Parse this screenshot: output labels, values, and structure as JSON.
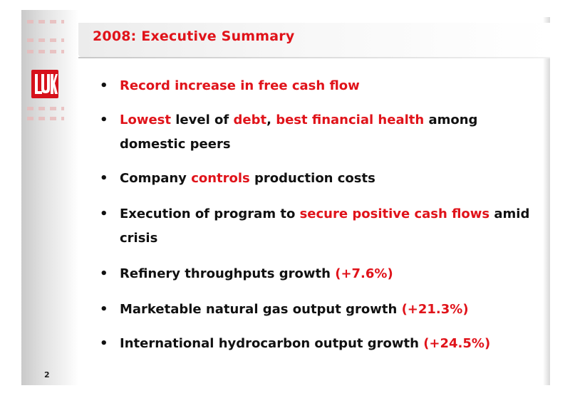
{
  "slide": {
    "title": "2008: Executive Summary",
    "page_number": "2",
    "logo_icon": "lukoil-logo",
    "accent_color": "#e0131a",
    "bullets": [
      {
        "parts": [
          {
            "text": "Record increase in free cash flow",
            "red": true
          }
        ]
      },
      {
        "parts": [
          {
            "text": "Lowest",
            "red": true
          },
          {
            "text": " level of ",
            "red": false
          },
          {
            "text": "debt",
            "red": true
          },
          {
            "text": ", ",
            "red": false
          },
          {
            "text": "best financial health",
            "red": true
          },
          {
            "text": " among domestic peers",
            "red": false
          }
        ]
      },
      {
        "parts": [
          {
            "text": "Company ",
            "red": false
          },
          {
            "text": "controls",
            "red": true
          },
          {
            "text": " production costs",
            "red": false
          }
        ]
      },
      {
        "parts": [
          {
            "text": "Execution of program to ",
            "red": false
          },
          {
            "text": "secure positive cash flows",
            "red": true
          },
          {
            "text": " amid crisis",
            "red": false
          }
        ]
      },
      {
        "parts": [
          {
            "text": "Refinery throughputs growth ",
            "red": false
          },
          {
            "text": "(+7.6%)",
            "red": true
          }
        ]
      },
      {
        "parts": [
          {
            "text": "Marketable natural gas output growth ",
            "red": false
          },
          {
            "text": "(+21.3%)",
            "red": true
          }
        ]
      },
      {
        "parts": [
          {
            "text": "International hydrocarbon output growth ",
            "red": false
          },
          {
            "text": "(+24.5%)",
            "red": true
          }
        ]
      }
    ]
  }
}
